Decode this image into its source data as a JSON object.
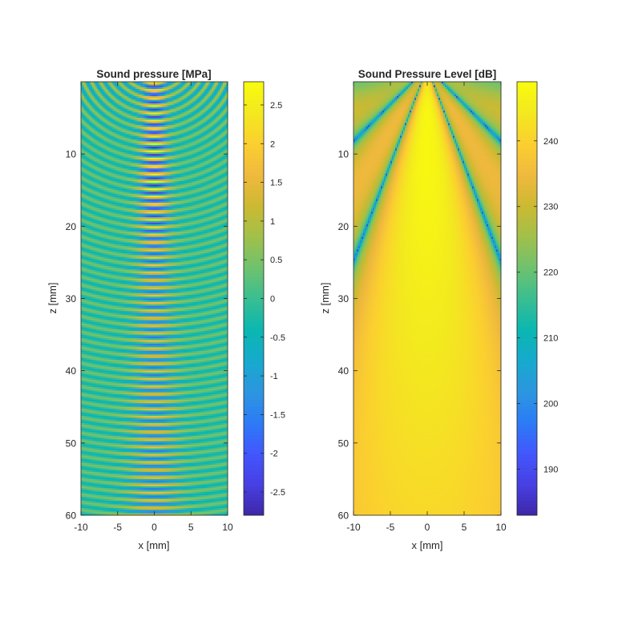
{
  "figure": {
    "background": "#ffffff"
  },
  "colormap": [
    "#3e26a8",
    "#4740e3",
    "#4257fd",
    "#2c7cf6",
    "#2d96df",
    "#16aacd",
    "#0bb7b0",
    "#3abe91",
    "#6fc26d",
    "#a1c04a",
    "#cdb932",
    "#f0b93e",
    "#fbcf2f",
    "#f3e91f",
    "#f9fb0e"
  ],
  "chart_data": [
    {
      "type": "heatmap",
      "title": "Sound pressure [MPa]",
      "xlabel": "x [mm]",
      "ylabel": "z [mm]",
      "xlim": [
        -10,
        10
      ],
      "ylim": [
        0,
        60
      ],
      "y_reversed": true,
      "xticks": [
        "-10",
        "-5",
        "0",
        "5",
        "10"
      ],
      "xtick_values": [
        -10,
        -5,
        0,
        5,
        10
      ],
      "yticks": [
        "10",
        "20",
        "30",
        "40",
        "50",
        "60"
      ],
      "ytick_values": [
        10,
        20,
        30,
        40,
        50,
        60
      ],
      "colorbar": {
        "limits": [
          -2.8,
          2.8
        ],
        "ticks": [
          "-2.5",
          "-2",
          "-1.5",
          "-1",
          "-0.5",
          "0",
          "0.5",
          "1",
          "1.5",
          "2",
          "2.5"
        ],
        "tick_values": [
          -2.5,
          -2,
          -1.5,
          -1,
          -0.5,
          0,
          0.5,
          1,
          1.5,
          2,
          2.5
        ]
      },
      "field": "oscillating pressure wavefronts, strongest along x = 0, peak about ±2.8 MPa near z ≈ 10–15 mm"
    },
    {
      "type": "heatmap",
      "title": "Sound Pressure Level [dB]",
      "xlabel": "x [mm]",
      "ylabel": "z [mm]",
      "xlim": [
        -10,
        10
      ],
      "ylim": [
        0,
        60
      ],
      "y_reversed": true,
      "xticks": [
        "-10",
        "-5",
        "0",
        "5",
        "10"
      ],
      "xtick_values": [
        -10,
        -5,
        0,
        5,
        10
      ],
      "yticks": [
        "10",
        "20",
        "30",
        "40",
        "50",
        "60"
      ],
      "ytick_values": [
        10,
        20,
        30,
        40,
        50,
        60
      ],
      "colorbar": {
        "limits": [
          183,
          249
        ],
        "ticks": [
          "190",
          "200",
          "210",
          "220",
          "230",
          "240"
        ],
        "tick_values": [
          190,
          200,
          210,
          220,
          230,
          240
        ]
      },
      "field": "central beam about 240–249 dB near axis, side lobes about 225–230 dB, nulls down to about 195 dB near z ≈ 2–10 mm"
    }
  ]
}
